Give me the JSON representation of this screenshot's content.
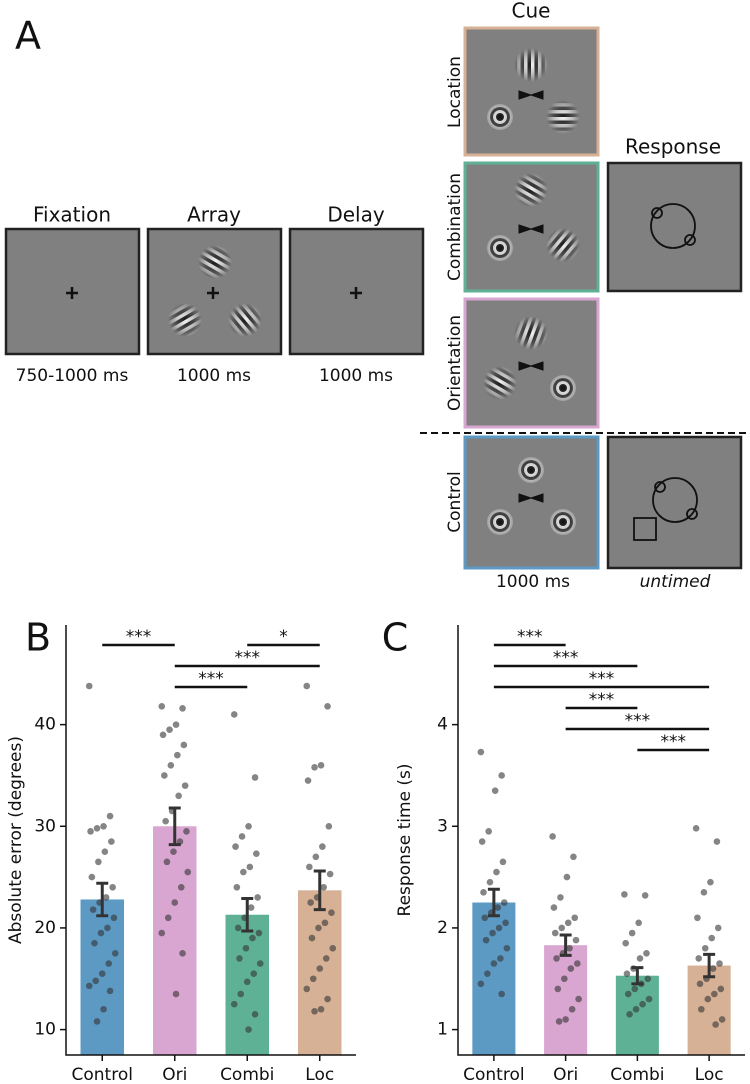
{
  "panel_a": {
    "label": "A",
    "stages": [
      {
        "name": "Fixation",
        "duration": "750-1000 ms"
      },
      {
        "name": "Array",
        "duration": "1000 ms"
      },
      {
        "name": "Delay",
        "duration": "1000 ms"
      }
    ],
    "cue": {
      "title": "Cue",
      "conditions": [
        "Location",
        "Combination",
        "Orientation",
        "Control"
      ],
      "duration": "1000 ms"
    },
    "response": {
      "title": "Response",
      "duration": "untimed"
    }
  },
  "chart_data": [
    {
      "type": "bar",
      "label": "B",
      "ylabel": "Absolute error (degrees)",
      "categories": [
        "Control",
        "Ori",
        "Combi",
        "Loc"
      ],
      "colors": [
        "#5c9ac4",
        "#d8a6d0",
        "#5fb196",
        "#d6b196"
      ],
      "values": [
        22.8,
        30,
        21.3,
        23.7
      ],
      "errors": [
        1.6,
        1.8,
        1.6,
        1.9
      ],
      "points": [
        [
          43.8,
          31,
          30,
          29.8,
          29.5,
          28.5,
          27.5,
          26.5,
          25,
          24,
          23,
          22.5,
          21.8,
          21,
          20,
          19.5,
          18.5,
          17.5,
          16.5,
          15.5,
          14.8,
          14.3,
          13.8,
          12,
          10.8
        ],
        [
          41.8,
          41.6,
          40,
          39.5,
          39,
          38,
          37,
          36,
          35,
          34,
          33,
          31.5,
          30.5,
          29.5,
          28.5,
          27.5,
          26.5,
          25.5,
          24,
          22.5,
          21,
          19.5,
          17.5,
          13.5
        ],
        [
          41,
          34.8,
          30,
          29,
          28,
          27.3,
          26,
          25.5,
          24,
          23,
          22,
          21,
          20,
          19.5,
          19,
          18,
          17,
          16.5,
          15.5,
          14.7,
          13.5,
          12.5,
          11.5,
          10
        ],
        [
          43.8,
          41.8,
          36,
          35.8,
          34.5,
          30,
          28,
          27,
          26,
          25.3,
          24,
          23,
          22.5,
          21.5,
          20.5,
          20,
          19,
          18,
          17,
          16,
          15,
          14,
          13,
          12,
          11.8
        ]
      ],
      "ylim": [
        7.5,
        49.8
      ],
      "yticks": [
        10,
        20,
        30,
        40
      ],
      "comparisons": [
        {
          "pair": [
            "Control",
            "Ori"
          ],
          "label": "***"
        },
        {
          "pair": [
            "Combi",
            "Loc"
          ],
          "label": "*"
        },
        {
          "pair": [
            "Ori",
            "Loc"
          ],
          "label": "***"
        },
        {
          "pair": [
            "Ori",
            "Combi"
          ],
          "label": "***"
        }
      ]
    },
    {
      "type": "bar",
      "label": "C",
      "ylabel": "Response time (s)",
      "categories": [
        "Control",
        "Ori",
        "Combi",
        "Loc"
      ],
      "colors": [
        "#5c9ac4",
        "#d8a6d0",
        "#5fb196",
        "#d6b196"
      ],
      "values": [
        2.25,
        1.83,
        1.53,
        1.63
      ],
      "errors": [
        0.13,
        0.1,
        0.08,
        0.11
      ],
      "points": [
        [
          3.73,
          3.5,
          3.35,
          2.95,
          2.85,
          2.65,
          2.55,
          2.45,
          2.35,
          2.25,
          2.2,
          2.15,
          2.1,
          2.05,
          2.0,
          1.95,
          1.88,
          1.8,
          1.7,
          1.65,
          1.55,
          1.45,
          1.35
        ],
        [
          2.9,
          2.7,
          2.5,
          2.3,
          2.2,
          2.1,
          2.05,
          2.0,
          1.95,
          1.88,
          1.8,
          1.75,
          1.7,
          1.65,
          1.6,
          1.5,
          1.4,
          1.3,
          1.2,
          1.1,
          1.08
        ],
        [
          2.33,
          2.32,
          2.05,
          1.95,
          1.85,
          1.75,
          1.7,
          1.6,
          1.55,
          1.5,
          1.45,
          1.4,
          1.35,
          1.3,
          1.25,
          1.2,
          1.15
        ],
        [
          2.98,
          2.85,
          2.45,
          2.35,
          2.1,
          2.0,
          1.9,
          1.8,
          1.7,
          1.65,
          1.6,
          1.5,
          1.45,
          1.4,
          1.35,
          1.3,
          1.2,
          1.1,
          1.05
        ]
      ],
      "ylim": [
        0.75,
        4.98
      ],
      "yticks": [
        1,
        2,
        3,
        4
      ],
      "comparisons": [
        {
          "pair": [
            "Control",
            "Ori"
          ],
          "label": "***"
        },
        {
          "pair": [
            "Control",
            "Combi"
          ],
          "label": "***"
        },
        {
          "pair": [
            "Control",
            "Loc"
          ],
          "label": "***"
        },
        {
          "pair": [
            "Ori",
            "Combi"
          ],
          "label": "***"
        },
        {
          "pair": [
            "Ori",
            "Loc"
          ],
          "label": "***"
        },
        {
          "pair": [
            "Combi",
            "Loc"
          ],
          "label": "***"
        }
      ]
    }
  ]
}
